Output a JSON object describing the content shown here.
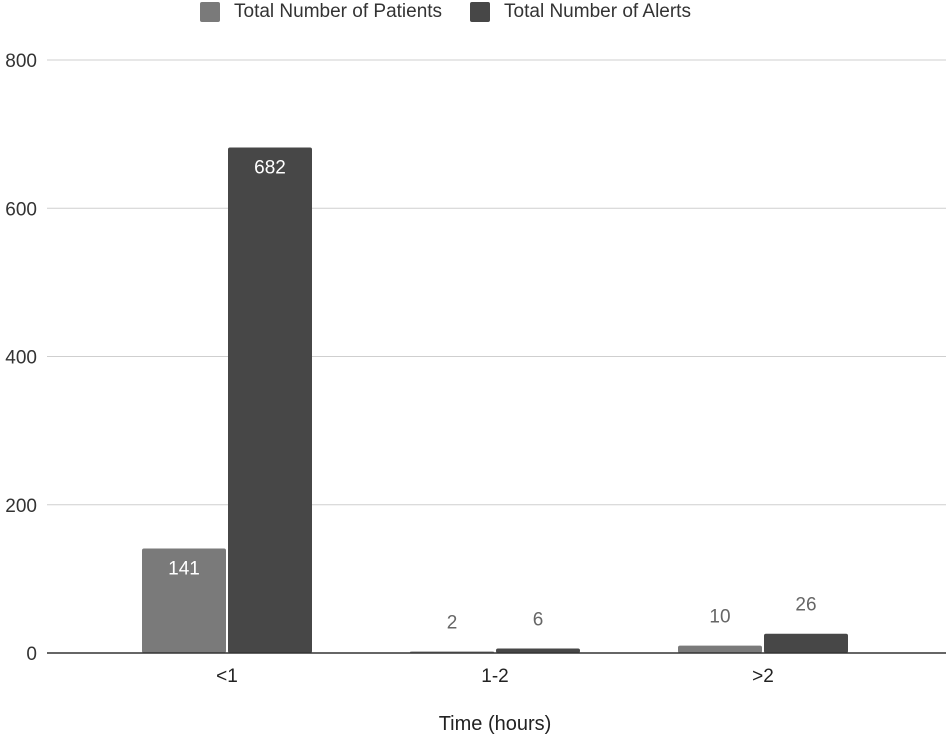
{
  "chart_data": {
    "type": "bar",
    "categories": [
      "<1",
      "1-2",
      ">2"
    ],
    "series": [
      {
        "name": "Total Number of Patients",
        "values": [
          141,
          2,
          10
        ],
        "color": "#7a7a7a"
      },
      {
        "name": "Total Number of Alerts",
        "values": [
          682,
          6,
          26
        ],
        "color": "#474747"
      }
    ],
    "title": "",
    "xlabel": "Time (hours)",
    "ylabel": "",
    "ylim": [
      0,
      800
    ],
    "yticks": [
      0,
      200,
      400,
      600,
      800
    ],
    "grid": true,
    "legend_position": "top"
  }
}
